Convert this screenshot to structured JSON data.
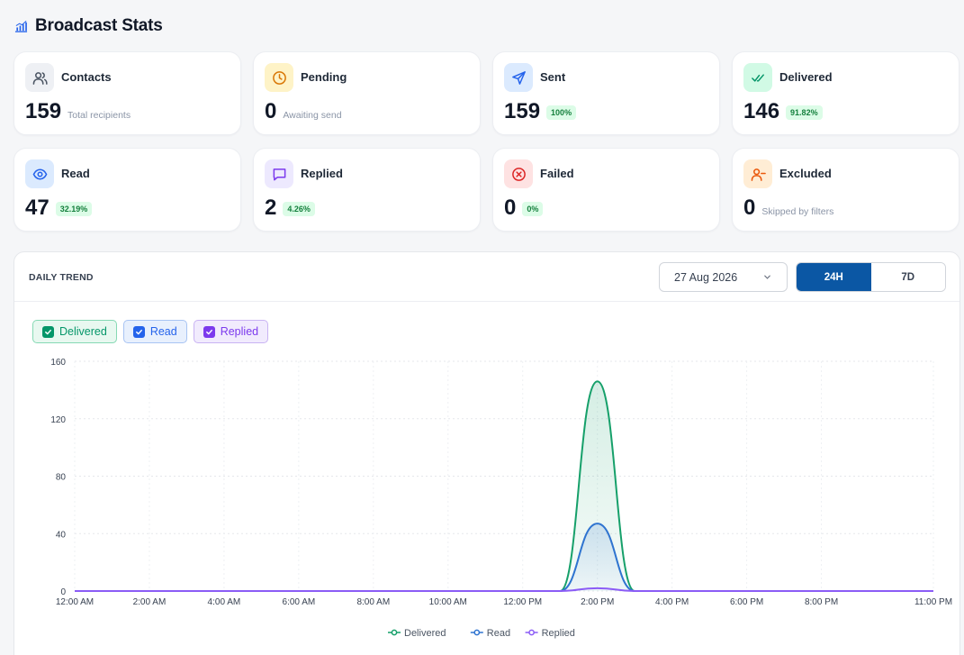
{
  "header": {
    "title": "Broadcast Stats",
    "icon": "chart-bar-icon"
  },
  "cards": [
    {
      "id": "contacts",
      "label": "Contacts",
      "value": "159",
      "sub": "Total recipients",
      "badge": "",
      "icon": "users-icon",
      "icon_bg": "#eef0f4",
      "icon_color": "#4b5563"
    },
    {
      "id": "pending",
      "label": "Pending",
      "value": "0",
      "sub": "Awaiting send",
      "badge": "",
      "icon": "clock-icon",
      "icon_bg": "#fef3c7",
      "icon_color": "#d97706"
    },
    {
      "id": "sent",
      "label": "Sent",
      "value": "159",
      "sub": "",
      "badge": "100%",
      "icon": "send-icon",
      "icon_bg": "#dbeafe",
      "icon_color": "#2563eb"
    },
    {
      "id": "delivered",
      "label": "Delivered",
      "value": "146",
      "sub": "",
      "badge": "91.82%",
      "icon": "double-check-icon",
      "icon_bg": "#d1fae5",
      "icon_color": "#059669"
    },
    {
      "id": "read",
      "label": "Read",
      "value": "47",
      "sub": "",
      "badge": "32.19%",
      "icon": "eye-icon",
      "icon_bg": "#dbeafe",
      "icon_color": "#2563eb"
    },
    {
      "id": "replied",
      "label": "Replied",
      "value": "2",
      "sub": "",
      "badge": "4.26%",
      "icon": "message-icon",
      "icon_bg": "#ede9fe",
      "icon_color": "#7c3aed"
    },
    {
      "id": "failed",
      "label": "Failed",
      "value": "0",
      "sub": "",
      "badge": "0%",
      "icon": "x-circle-icon",
      "icon_bg": "#fee2e2",
      "icon_color": "#dc2626"
    },
    {
      "id": "excluded",
      "label": "Excluded",
      "value": "0",
      "sub": "Skipped by filters",
      "badge": "",
      "icon": "user-minus-icon",
      "icon_bg": "#ffedd5",
      "icon_color": "#ea580c"
    }
  ],
  "trend": {
    "title": "DAILY TREND",
    "date": "27 Aug 2026",
    "ranges": [
      {
        "label": "24H",
        "active": true
      },
      {
        "label": "7D",
        "active": false
      }
    ],
    "toggles": [
      {
        "label": "Delivered",
        "color": "#059669",
        "bg": "#e8f8f0",
        "border": "#86d9b4",
        "checked": true
      },
      {
        "label": "Read",
        "color": "#2563eb",
        "bg": "#e8f0fd",
        "border": "#a8c4f3",
        "checked": true
      },
      {
        "label": "Replied",
        "color": "#7c3aed",
        "bg": "#f1ebfd",
        "border": "#c9b3f3",
        "checked": true
      }
    ]
  },
  "chart_data": {
    "type": "line",
    "x_ticks": [
      "12:00 AM",
      "2:00 AM",
      "4:00 AM",
      "6:00 AM",
      "8:00 AM",
      "10:00 AM",
      "12:00 PM",
      "2:00 PM",
      "4:00 PM",
      "6:00 PM",
      "8:00 PM",
      "11:00 PM"
    ],
    "x_hours": [
      0,
      2,
      4,
      6,
      8,
      10,
      12,
      14,
      16,
      18,
      20,
      23
    ],
    "ylim": [
      0,
      160
    ],
    "y_ticks": [
      0,
      40,
      80,
      120,
      160
    ],
    "grid": true,
    "legend": "bottom-center",
    "series": [
      {
        "name": "Delivered",
        "color": "#16a06a",
        "fill": true,
        "hours": [
          0,
          1,
          2,
          3,
          4,
          5,
          6,
          7,
          8,
          9,
          10,
          11,
          12,
          13,
          14,
          15,
          16,
          17,
          18,
          19,
          20,
          21,
          22,
          23
        ],
        "values": [
          0,
          0,
          0,
          0,
          0,
          0,
          0,
          0,
          0,
          0,
          0,
          0,
          0,
          0,
          146,
          0,
          0,
          0,
          0,
          0,
          0,
          0,
          0,
          0
        ]
      },
      {
        "name": "Read",
        "color": "#2f74d0",
        "fill": true,
        "hours": [
          0,
          1,
          2,
          3,
          4,
          5,
          6,
          7,
          8,
          9,
          10,
          11,
          12,
          13,
          14,
          15,
          16,
          17,
          18,
          19,
          20,
          21,
          22,
          23
        ],
        "values": [
          0,
          0,
          0,
          0,
          0,
          0,
          0,
          0,
          0,
          0,
          0,
          0,
          0,
          0,
          47,
          0,
          0,
          0,
          0,
          0,
          0,
          0,
          0,
          0
        ]
      },
      {
        "name": "Replied",
        "color": "#8b5cf6",
        "fill": false,
        "hours": [
          0,
          1,
          2,
          3,
          4,
          5,
          6,
          7,
          8,
          9,
          10,
          11,
          12,
          13,
          14,
          15,
          16,
          17,
          18,
          19,
          20,
          21,
          22,
          23
        ],
        "values": [
          0,
          0,
          0,
          0,
          0,
          0,
          0,
          0,
          0,
          0,
          0,
          0,
          0,
          0,
          2,
          0,
          0,
          0,
          0,
          0,
          0,
          0,
          0,
          0
        ]
      }
    ]
  }
}
